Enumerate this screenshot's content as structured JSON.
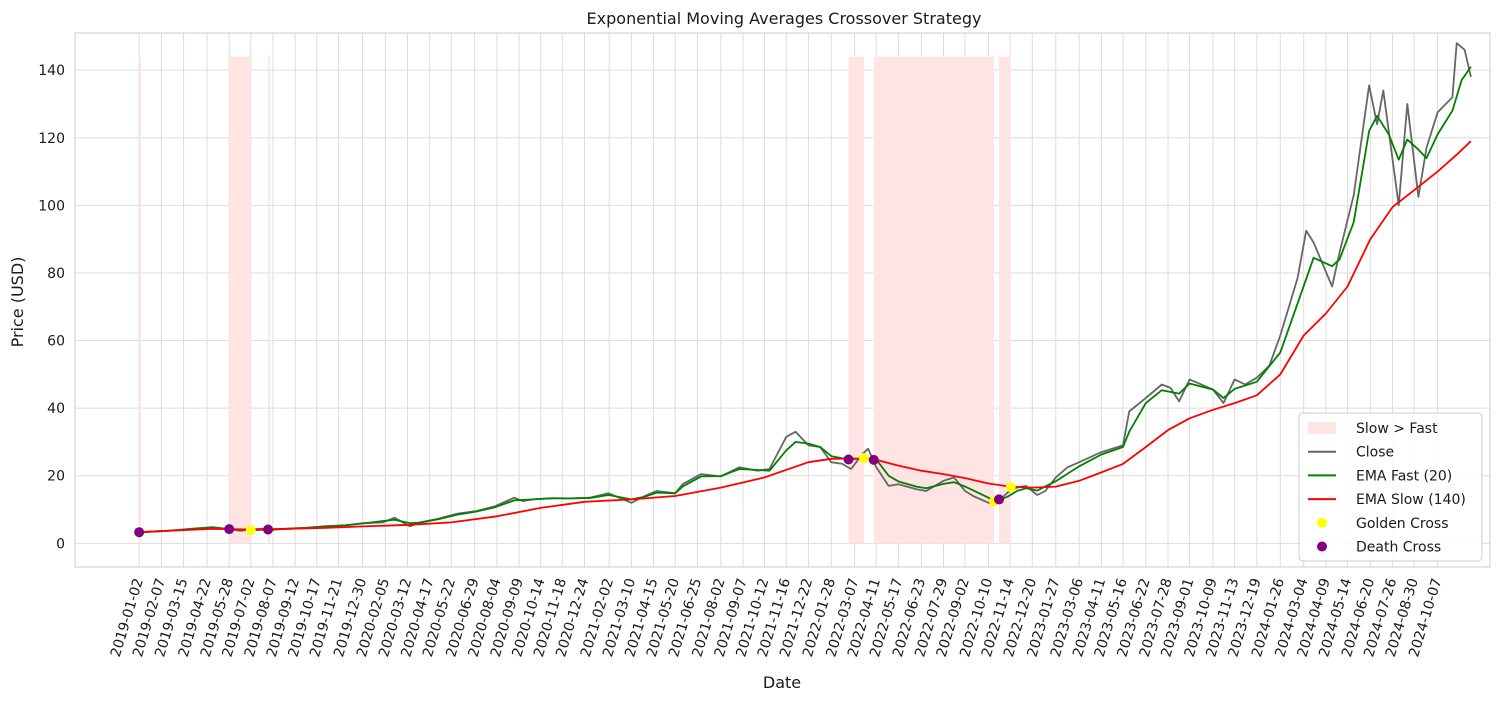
{
  "chart_data": {
    "type": "line",
    "title": "Exponential Moving Averages Crossover Strategy",
    "xlabel": "Date",
    "ylabel": "Price (USD)",
    "x_range": [
      "2018-09-20",
      "2024-12-31"
    ],
    "ylim": [
      -7,
      151
    ],
    "yticks": [
      0,
      20,
      40,
      60,
      80,
      100,
      120,
      140
    ],
    "xticks": [
      "2019-01-02",
      "2019-02-07",
      "2019-03-15",
      "2019-04-22",
      "2019-05-28",
      "2019-07-02",
      "2019-08-07",
      "2019-09-12",
      "2019-10-17",
      "2019-11-21",
      "2019-12-30",
      "2020-02-05",
      "2020-03-12",
      "2020-04-17",
      "2020-05-22",
      "2020-06-29",
      "2020-08-04",
      "2020-09-09",
      "2020-10-14",
      "2020-11-18",
      "2020-12-24",
      "2021-02-02",
      "2021-03-10",
      "2021-04-15",
      "2021-05-20",
      "2021-06-25",
      "2021-08-02",
      "2021-09-07",
      "2021-10-12",
      "2021-11-16",
      "2021-12-22",
      "2022-01-28",
      "2022-03-07",
      "2022-04-11",
      "2022-05-17",
      "2022-06-23",
      "2022-07-29",
      "2022-09-02",
      "2022-10-10",
      "2022-11-14",
      "2022-12-20",
      "2023-01-27",
      "2023-03-06",
      "2023-04-11",
      "2023-05-16",
      "2023-06-22",
      "2023-07-28",
      "2023-09-01",
      "2023-10-09",
      "2023-11-13",
      "2023-12-19",
      "2024-01-26",
      "2024-03-04",
      "2024-04-09",
      "2024-05-14",
      "2024-06-20",
      "2024-07-26",
      "2024-08-30",
      "2024-10-07"
    ],
    "grid": true,
    "legend_position": "lower-right",
    "shaded_regions": {
      "name": "Slow > Fast",
      "color": "#ffe4e4",
      "ranges": [
        [
          "2019-01-02",
          "2019-01-04"
        ],
        [
          "2019-05-28",
          "2019-07-02"
        ],
        [
          "2019-07-30",
          "2019-08-01"
        ],
        [
          "2022-02-25",
          "2022-03-22"
        ],
        [
          "2022-04-07",
          "2022-10-19"
        ],
        [
          "2022-10-27",
          "2022-11-15"
        ]
      ]
    },
    "series": [
      {
        "name": "Close",
        "color": "#666666",
        "points": [
          [
            "2019-01-02",
            3.3
          ],
          [
            "2019-02-01",
            3.5
          ],
          [
            "2019-03-01",
            3.9
          ],
          [
            "2019-04-01",
            4.4
          ],
          [
            "2019-05-01",
            4.8
          ],
          [
            "2019-05-28",
            4.2
          ],
          [
            "2019-06-15",
            3.7
          ],
          [
            "2019-07-02",
            4.1
          ],
          [
            "2019-07-20",
            4.3
          ],
          [
            "2019-08-07",
            4.0
          ],
          [
            "2019-09-01",
            4.4
          ],
          [
            "2019-10-01",
            4.6
          ],
          [
            "2019-11-01",
            5.1
          ],
          [
            "2019-12-01",
            5.3
          ],
          [
            "2020-01-01",
            6.0
          ],
          [
            "2020-02-01",
            6.2
          ],
          [
            "2020-02-20",
            7.6
          ],
          [
            "2020-03-16",
            5.0
          ],
          [
            "2020-04-01",
            6.2
          ],
          [
            "2020-05-01",
            7.3
          ],
          [
            "2020-06-01",
            8.8
          ],
          [
            "2020-07-01",
            9.5
          ],
          [
            "2020-08-01",
            11.0
          ],
          [
            "2020-09-01",
            13.5
          ],
          [
            "2020-09-15",
            12.5
          ],
          [
            "2020-10-01",
            13.0
          ],
          [
            "2020-11-01",
            13.4
          ],
          [
            "2020-12-01",
            13.3
          ],
          [
            "2021-01-01",
            13.5
          ],
          [
            "2021-02-01",
            14.8
          ],
          [
            "2021-03-10",
            12.0
          ],
          [
            "2021-04-01",
            14.0
          ],
          [
            "2021-04-20",
            15.5
          ],
          [
            "2021-05-20",
            14.8
          ],
          [
            "2021-06-01",
            17.5
          ],
          [
            "2021-07-01",
            20.5
          ],
          [
            "2021-08-02",
            19.8
          ],
          [
            "2021-09-01",
            22.5
          ],
          [
            "2021-10-01",
            21.5
          ],
          [
            "2021-10-20",
            22.0
          ],
          [
            "2021-11-16",
            31.5
          ],
          [
            "2021-12-01",
            33.0
          ],
          [
            "2021-12-22",
            29.0
          ],
          [
            "2022-01-10",
            28.5
          ],
          [
            "2022-01-28",
            24.0
          ],
          [
            "2022-02-15",
            23.5
          ],
          [
            "2022-03-01",
            22.0
          ],
          [
            "2022-03-20",
            26.5
          ],
          [
            "2022-03-29",
            28.0
          ],
          [
            "2022-04-11",
            22.5
          ],
          [
            "2022-05-01",
            17.0
          ],
          [
            "2022-05-17",
            17.5
          ],
          [
            "2022-06-15",
            16.0
          ],
          [
            "2022-07-01",
            15.5
          ],
          [
            "2022-07-29",
            18.5
          ],
          [
            "2022-08-15",
            19.5
          ],
          [
            "2022-09-02",
            15.5
          ],
          [
            "2022-09-15",
            14.0
          ],
          [
            "2022-10-10",
            12.0
          ],
          [
            "2022-10-20",
            11.5
          ],
          [
            "2022-11-10",
            15.0
          ],
          [
            "2022-11-25",
            16.5
          ],
          [
            "2022-12-10",
            17.0
          ],
          [
            "2022-12-28",
            14.3
          ],
          [
            "2023-01-10",
            15.5
          ],
          [
            "2023-01-27",
            19.5
          ],
          [
            "2023-02-15",
            22.5
          ],
          [
            "2023-03-06",
            24.0
          ],
          [
            "2023-04-11",
            27.0
          ],
          [
            "2023-05-16",
            29.0
          ],
          [
            "2023-05-26",
            39.0
          ],
          [
            "2023-06-22",
            43.0
          ],
          [
            "2023-07-18",
            47.0
          ],
          [
            "2023-08-01",
            46.0
          ],
          [
            "2023-08-15",
            42.0
          ],
          [
            "2023-09-01",
            48.5
          ],
          [
            "2023-10-09",
            45.5
          ],
          [
            "2023-10-26",
            41.5
          ],
          [
            "2023-11-13",
            48.5
          ],
          [
            "2023-11-30",
            47.0
          ],
          [
            "2023-12-19",
            49.0
          ],
          [
            "2024-01-08",
            52.5
          ],
          [
            "2024-01-26",
            61.5
          ],
          [
            "2024-02-23",
            78.5
          ],
          [
            "2024-03-08",
            92.5
          ],
          [
            "2024-03-20",
            89.0
          ],
          [
            "2024-04-19",
            76.0
          ],
          [
            "2024-05-01",
            86.0
          ],
          [
            "2024-05-24",
            103.0
          ],
          [
            "2024-06-18",
            135.5
          ],
          [
            "2024-07-01",
            124.0
          ],
          [
            "2024-07-11",
            134.0
          ],
          [
            "2024-08-05",
            100.0
          ],
          [
            "2024-08-19",
            130.0
          ],
          [
            "2024-09-06",
            102.5
          ],
          [
            "2024-09-19",
            117.0
          ],
          [
            "2024-10-07",
            127.5
          ],
          [
            "2024-10-31",
            132.0
          ],
          [
            "2024-11-07",
            148.0
          ],
          [
            "2024-11-20",
            146.0
          ],
          [
            "2024-11-30",
            138.0
          ]
        ]
      },
      {
        "name": "EMA Fast (20)",
        "color": "#008000",
        "points": [
          [
            "2019-01-02",
            3.3
          ],
          [
            "2019-02-01",
            3.6
          ],
          [
            "2019-03-01",
            3.8
          ],
          [
            "2019-04-01",
            4.3
          ],
          [
            "2019-05-01",
            4.7
          ],
          [
            "2019-05-28",
            4.2
          ],
          [
            "2019-07-02",
            3.9
          ],
          [
            "2019-08-07",
            4.1
          ],
          [
            "2019-09-01",
            4.3
          ],
          [
            "2019-10-01",
            4.6
          ],
          [
            "2019-11-01",
            5.0
          ],
          [
            "2019-12-01",
            5.3
          ],
          [
            "2020-01-01",
            5.9
          ],
          [
            "2020-02-20",
            7.0
          ],
          [
            "2020-03-16",
            6.0
          ],
          [
            "2020-04-01",
            6.1
          ],
          [
            "2020-05-01",
            7.1
          ],
          [
            "2020-06-01",
            8.5
          ],
          [
            "2020-07-01",
            9.4
          ],
          [
            "2020-08-01",
            10.7
          ],
          [
            "2020-09-01",
            12.7
          ],
          [
            "2020-10-01",
            13.0
          ],
          [
            "2020-11-01",
            13.3
          ],
          [
            "2020-12-01",
            13.3
          ],
          [
            "2021-01-01",
            13.4
          ],
          [
            "2021-02-01",
            14.3
          ],
          [
            "2021-03-10",
            13.0
          ],
          [
            "2021-04-01",
            13.8
          ],
          [
            "2021-04-20",
            15.0
          ],
          [
            "2021-05-20",
            14.8
          ],
          [
            "2021-06-01",
            16.8
          ],
          [
            "2021-07-01",
            19.8
          ],
          [
            "2021-08-02",
            19.9
          ],
          [
            "2021-09-01",
            22.0
          ],
          [
            "2021-10-01",
            21.7
          ],
          [
            "2021-10-20",
            21.5
          ],
          [
            "2021-11-16",
            27.5
          ],
          [
            "2021-12-01",
            30.0
          ],
          [
            "2021-12-22",
            29.5
          ],
          [
            "2022-01-10",
            28.5
          ],
          [
            "2022-01-28",
            25.8
          ],
          [
            "2022-02-25",
            24.8
          ],
          [
            "2022-03-22",
            25.2
          ],
          [
            "2022-04-11",
            24.8
          ],
          [
            "2022-05-01",
            20.0
          ],
          [
            "2022-05-17",
            18.3
          ],
          [
            "2022-06-15",
            16.8
          ],
          [
            "2022-07-01",
            16.3
          ],
          [
            "2022-07-29",
            17.6
          ],
          [
            "2022-08-15",
            18.1
          ],
          [
            "2022-09-02",
            16.8
          ],
          [
            "2022-10-10",
            13.5
          ],
          [
            "2022-10-20",
            12.3
          ],
          [
            "2022-11-10",
            13.8
          ],
          [
            "2022-11-25",
            15.5
          ],
          [
            "2022-12-10",
            16.3
          ],
          [
            "2022-12-28",
            15.6
          ],
          [
            "2023-01-27",
            18.4
          ],
          [
            "2023-03-06",
            22.8
          ],
          [
            "2023-04-11",
            26.3
          ],
          [
            "2023-05-16",
            28.5
          ],
          [
            "2023-05-26",
            33.0
          ],
          [
            "2023-06-22",
            41.5
          ],
          [
            "2023-07-18",
            45.3
          ],
          [
            "2023-08-15",
            44.3
          ],
          [
            "2023-09-01",
            47.3
          ],
          [
            "2023-10-09",
            45.5
          ],
          [
            "2023-10-26",
            43.0
          ],
          [
            "2023-11-13",
            45.7
          ],
          [
            "2023-12-19",
            47.8
          ],
          [
            "2024-01-26",
            56.5
          ],
          [
            "2024-02-23",
            71.0
          ],
          [
            "2024-03-20",
            84.5
          ],
          [
            "2024-04-19",
            82.0
          ],
          [
            "2024-05-01",
            84.0
          ],
          [
            "2024-05-24",
            95.0
          ],
          [
            "2024-06-18",
            122.0
          ],
          [
            "2024-07-01",
            126.5
          ],
          [
            "2024-07-20",
            121.0
          ],
          [
            "2024-08-05",
            113.5
          ],
          [
            "2024-08-19",
            119.5
          ],
          [
            "2024-09-06",
            116.5
          ],
          [
            "2024-09-19",
            114.0
          ],
          [
            "2024-10-07",
            121.0
          ],
          [
            "2024-10-31",
            128.0
          ],
          [
            "2024-11-15",
            137.0
          ],
          [
            "2024-11-30",
            141.0
          ]
        ]
      },
      {
        "name": "EMA Slow (140)",
        "color": "#ff0000",
        "points": [
          [
            "2019-01-02",
            3.3
          ],
          [
            "2019-03-01",
            3.8
          ],
          [
            "2019-05-01",
            4.3
          ],
          [
            "2019-07-02",
            4.1
          ],
          [
            "2019-09-01",
            4.3
          ],
          [
            "2019-11-01",
            4.6
          ],
          [
            "2020-01-01",
            5.0
          ],
          [
            "2020-03-16",
            5.5
          ],
          [
            "2020-05-22",
            6.2
          ],
          [
            "2020-08-04",
            8.0
          ],
          [
            "2020-10-14",
            10.5
          ],
          [
            "2020-12-24",
            12.3
          ],
          [
            "2021-03-10",
            13.0
          ],
          [
            "2021-05-20",
            14.0
          ],
          [
            "2021-08-02",
            16.5
          ],
          [
            "2021-10-12",
            19.5
          ],
          [
            "2021-12-22",
            24.0
          ],
          [
            "2022-01-28",
            25.0
          ],
          [
            "2022-03-07",
            25.1
          ],
          [
            "2022-04-11",
            24.7
          ],
          [
            "2022-05-17",
            23.0
          ],
          [
            "2022-06-23",
            21.5
          ],
          [
            "2022-07-29",
            20.5
          ],
          [
            "2022-09-02",
            19.3
          ],
          [
            "2022-10-10",
            17.7
          ],
          [
            "2022-11-14",
            16.8
          ],
          [
            "2022-12-20",
            16.5
          ],
          [
            "2023-01-27",
            16.8
          ],
          [
            "2023-03-06",
            18.5
          ],
          [
            "2023-04-11",
            21.0
          ],
          [
            "2023-05-16",
            23.5
          ],
          [
            "2023-06-22",
            28.5
          ],
          [
            "2023-07-28",
            33.5
          ],
          [
            "2023-09-01",
            37.0
          ],
          [
            "2023-10-09",
            39.5
          ],
          [
            "2023-11-13",
            41.5
          ],
          [
            "2023-12-19",
            43.8
          ],
          [
            "2024-01-26",
            50.0
          ],
          [
            "2024-03-04",
            61.5
          ],
          [
            "2024-04-09",
            68.0
          ],
          [
            "2024-05-14",
            76.0
          ],
          [
            "2024-06-20",
            90.0
          ],
          [
            "2024-07-26",
            99.5
          ],
          [
            "2024-08-30",
            104.5
          ],
          [
            "2024-10-07",
            110.0
          ],
          [
            "2024-11-07",
            115.0
          ],
          [
            "2024-11-30",
            119.0
          ]
        ]
      }
    ],
    "markers": [
      {
        "name": "Golden Cross",
        "color": "#ffff00",
        "points": [
          [
            "2019-07-02",
            3.9
          ],
          [
            "2022-03-22",
            25.2
          ],
          [
            "2022-10-19",
            12.4
          ],
          [
            "2022-11-15",
            16.6
          ]
        ]
      },
      {
        "name": "Death Cross",
        "color": "#800080",
        "points": [
          [
            "2019-01-02",
            3.3
          ],
          [
            "2019-05-28",
            4.2
          ],
          [
            "2019-07-30",
            4.1
          ],
          [
            "2022-02-25",
            24.8
          ],
          [
            "2022-04-07",
            24.7
          ],
          [
            "2022-10-27",
            13.0
          ]
        ]
      }
    ]
  }
}
